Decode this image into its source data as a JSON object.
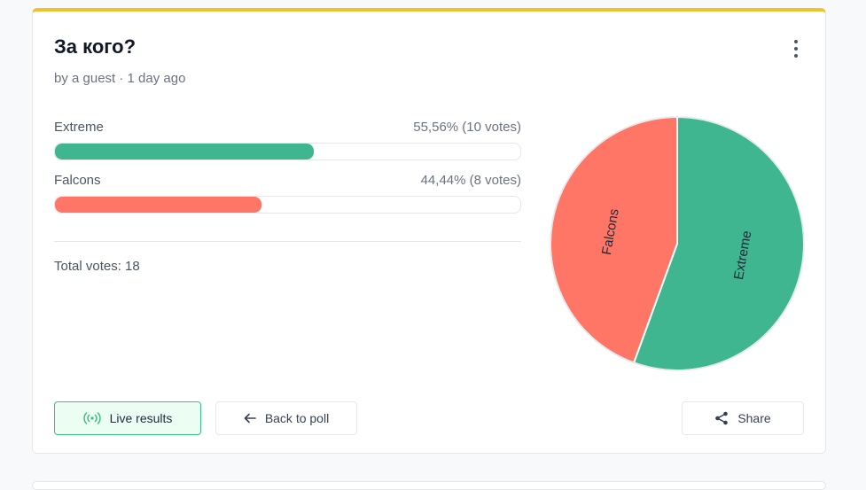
{
  "poll": {
    "title": "За кого?",
    "subtitle": "by a guest · 1 day ago",
    "options": [
      {
        "label": "Extreme",
        "stats": "55,56% (10 votes)",
        "percent": 55.56,
        "votes": 10,
        "color": "#3fb68f"
      },
      {
        "label": "Falcons",
        "stats": "44,44% (8 votes)",
        "percent": 44.44,
        "votes": 8,
        "color": "#ff7666"
      }
    ],
    "total_label": "Total votes: 18"
  },
  "buttons": {
    "live": "Live results",
    "back": "Back to poll",
    "share": "Share"
  },
  "icons": {
    "menu": "more-vertical-icon",
    "live": "broadcast-icon",
    "back": "arrow-left-icon",
    "share": "share-icon"
  },
  "colors": {
    "accent_top": "#f2c12e",
    "extreme": "#3fb68f",
    "falcons": "#ff7666"
  },
  "chart_data": {
    "type": "pie",
    "categories": [
      "Extreme",
      "Falcons"
    ],
    "values": [
      10,
      8
    ],
    "percent": [
      55.56,
      44.44
    ],
    "colors": [
      "#3fb68f",
      "#ff7666"
    ],
    "slice_labels": [
      "Extreme",
      "Falcons"
    ]
  }
}
